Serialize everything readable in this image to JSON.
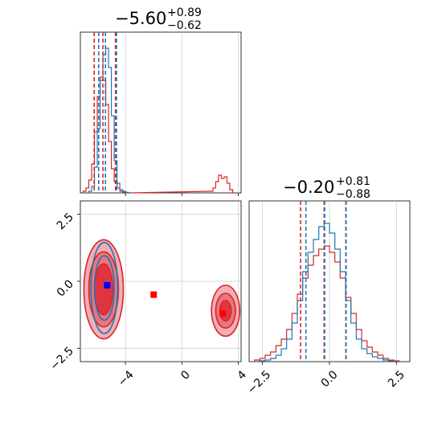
{
  "chart_data": [
    {
      "type": "histogram",
      "panel": "marginal-param-1",
      "title": {
        "main": "−5.60",
        "sup": "+0.89",
        "sub": "−0.62"
      },
      "xlim": [
        -7.2,
        4.2
      ],
      "ylim": [
        0,
        1.0
      ],
      "grid": true,
      "vlines": {
        "red": [
          -6.22,
          -5.6,
          -4.71
        ],
        "blue": [
          -5.9,
          -5.42,
          -4.64
        ]
      },
      "series": [
        {
          "color": "#d62728",
          "x": [
            -6.9,
            -6.7,
            -6.5,
            -6.3,
            -6.1,
            -5.9,
            -5.7,
            -5.5,
            -5.3,
            -5.1,
            -4.9,
            -4.7,
            -4.5,
            -4.3,
            -4.1,
            -3.9,
            -3.7,
            2.1,
            2.3,
            2.5,
            2.7,
            2.9,
            3.1,
            3.3,
            3.5,
            3.7
          ],
          "y": [
            0.01,
            0.03,
            0.08,
            0.18,
            0.38,
            0.6,
            0.72,
            0.7,
            0.55,
            0.32,
            0.15,
            0.07,
            0.03,
            0.01,
            0.005,
            0.002,
            0.0,
            0.01,
            0.03,
            0.07,
            0.11,
            0.09,
            0.1,
            0.06,
            0.02,
            0.0
          ]
        },
        {
          "color": "#1f77b4",
          "x": [
            -6.5,
            -6.3,
            -6.1,
            -5.9,
            -5.7,
            -5.5,
            -5.3,
            -5.1,
            -4.9,
            -4.7,
            -4.5,
            -4.3,
            -4.1,
            -3.9,
            -3.7
          ],
          "y": [
            0.01,
            0.04,
            0.16,
            0.4,
            0.7,
            0.86,
            0.9,
            0.78,
            0.48,
            0.2,
            0.06,
            0.02,
            0.01,
            0.004,
            0.0
          ]
        }
      ],
      "x_ticks": [
        -4,
        0,
        4
      ],
      "x_tick_labels": [
        "",
        "",
        ""
      ]
    },
    {
      "type": "contour",
      "panel": "joint",
      "xlim": [
        -7.2,
        4.2
      ],
      "ylim": [
        -3.0,
        3.0
      ],
      "grid": true,
      "x_ticks": [
        -4,
        0,
        4
      ],
      "x_tick_labels": [
        "−4",
        "0",
        "4"
      ],
      "y_ticks": [
        2.5,
        0.0,
        -2.5
      ],
      "y_tick_labels": [
        "2.5",
        "0.0",
        "−2.5"
      ],
      "red_modes": [
        {
          "cx": -5.55,
          "cy": -0.3,
          "levels": [
            [
              1.4,
              1.85
            ],
            [
              1.05,
              1.4
            ],
            [
              0.65,
              0.95
            ]
          ]
        },
        {
          "cx": 3.1,
          "cy": -1.1,
          "levels": [
            [
              1.0,
              0.95
            ],
            [
              0.7,
              0.65
            ],
            [
              0.4,
              0.38
            ]
          ]
        }
      ],
      "blue_mode": {
        "cx": -5.5,
        "cy": -0.25,
        "levels": [
          [
            0.95,
            1.7
          ],
          [
            0.7,
            1.2
          ]
        ]
      },
      "markers": [
        {
          "x": -5.3,
          "y": -0.15,
          "color": "#0000ff"
        },
        {
          "x": -2.0,
          "y": -0.5,
          "color": "#ff0000"
        },
        {
          "x": 2.9,
          "y": -1.2,
          "color": "#ff0000"
        }
      ]
    },
    {
      "type": "histogram",
      "panel": "marginal-param-2",
      "title": {
        "main": "−0.20",
        "sup": "+0.81",
        "sub": "−0.88"
      },
      "xlim": [
        -3.0,
        3.0
      ],
      "ylim": [
        0,
        1.0
      ],
      "grid": true,
      "vlines": {
        "red": [
          -1.08,
          -0.2,
          0.61
        ],
        "blue": [
          -0.88,
          -0.18,
          0.62
        ]
      },
      "series": [
        {
          "color": "#d62728",
          "x": [
            -2.7,
            -2.5,
            -2.3,
            -2.1,
            -1.9,
            -1.7,
            -1.5,
            -1.3,
            -1.1,
            -0.9,
            -0.7,
            -0.5,
            -0.3,
            -0.1,
            0.1,
            0.3,
            0.5,
            0.7,
            0.9,
            1.1,
            1.3,
            1.5,
            1.7,
            1.9,
            2.1,
            2.3,
            2.5
          ],
          "y": [
            0.01,
            0.02,
            0.04,
            0.06,
            0.1,
            0.14,
            0.2,
            0.3,
            0.42,
            0.52,
            0.6,
            0.66,
            0.7,
            0.72,
            0.68,
            0.62,
            0.52,
            0.4,
            0.3,
            0.2,
            0.13,
            0.09,
            0.06,
            0.04,
            0.02,
            0.01,
            0.005
          ]
        },
        {
          "color": "#1f77b4",
          "x": [
            -2.5,
            -2.3,
            -2.1,
            -1.9,
            -1.7,
            -1.5,
            -1.3,
            -1.1,
            -0.9,
            -0.7,
            -0.5,
            -0.3,
            -0.1,
            0.1,
            0.3,
            0.5,
            0.7,
            0.9,
            1.1,
            1.3,
            1.5,
            1.7,
            1.9,
            2.1,
            2.3
          ],
          "y": [
            0.005,
            0.01,
            0.02,
            0.04,
            0.08,
            0.14,
            0.24,
            0.38,
            0.56,
            0.68,
            0.76,
            0.84,
            0.86,
            0.8,
            0.7,
            0.56,
            0.38,
            0.24,
            0.14,
            0.08,
            0.05,
            0.03,
            0.02,
            0.01,
            0.005
          ]
        }
      ],
      "x_ticks": [
        -2.5,
        0.0,
        2.5
      ],
      "x_tick_labels": [
        "−2.5",
        "0.0",
        "2.5"
      ]
    }
  ]
}
